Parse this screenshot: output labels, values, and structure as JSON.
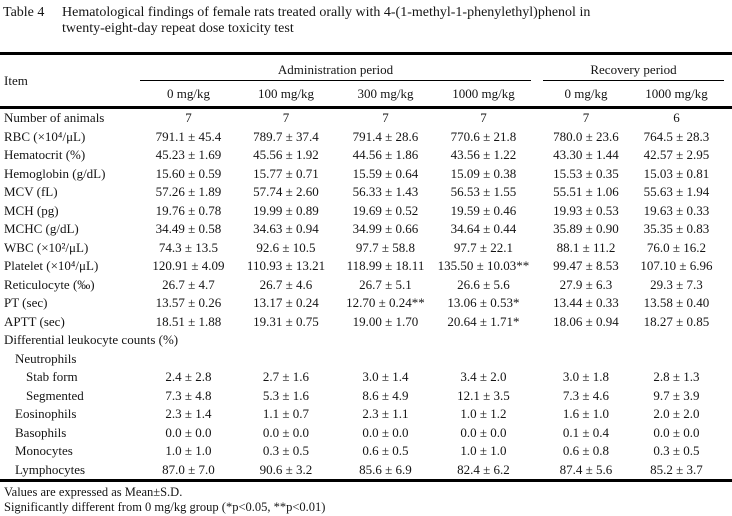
{
  "title": {
    "label": "Table 4",
    "caption_line1": "Hematological findings of female rats treated orally with 4-(1-methyl-1-phenylethyl)phenol in",
    "caption_line2": "twenty-eight-day repeat dose toxicity test"
  },
  "table": {
    "item_header": "Item",
    "groups": [
      {
        "label": "Administration period",
        "columns": [
          "0 mg/kg",
          "100 mg/kg",
          "300 mg/kg",
          "1000 mg/kg"
        ]
      },
      {
        "label": "Recovery period",
        "columns": [
          "0 mg/kg",
          "1000 mg/kg"
        ]
      }
    ],
    "rows": [
      {
        "label": "Number of animals",
        "indent": 0,
        "values": [
          "7",
          "7",
          "7",
          "7",
          "7",
          "6"
        ]
      },
      {
        "label": "RBC (×10⁴/μL)",
        "indent": 0,
        "values": [
          "791.1 ± 45.4",
          "789.7 ± 37.4",
          "791.4 ± 28.6",
          "770.6 ± 21.8",
          "780.0 ± 23.6",
          "764.5 ± 28.3"
        ]
      },
      {
        "label": "Hematocrit (%)",
        "indent": 0,
        "values": [
          "45.23 ± 1.69",
          "45.56 ± 1.92",
          "44.56 ± 1.86",
          "43.56 ± 1.22",
          "43.30 ± 1.44",
          "42.57 ± 2.95"
        ]
      },
      {
        "label": "Hemoglobin (g/dL)",
        "indent": 0,
        "values": [
          "15.60 ± 0.59",
          "15.77 ± 0.71",
          "15.59 ± 0.64",
          "15.09 ± 0.38",
          "15.53 ± 0.35",
          "15.03 ± 0.81"
        ]
      },
      {
        "label": "MCV (fL)",
        "indent": 0,
        "values": [
          "57.26 ± 1.89",
          "57.74 ± 2.60",
          "56.33 ± 1.43",
          "56.53 ± 1.55",
          "55.51 ± 1.06",
          "55.63 ± 1.94"
        ]
      },
      {
        "label": "MCH (pg)",
        "indent": 0,
        "values": [
          "19.76 ± 0.78",
          "19.99 ± 0.89",
          "19.69 ± 0.52",
          "19.59 ± 0.46",
          "19.93 ± 0.53",
          "19.63 ± 0.33"
        ]
      },
      {
        "label": "MCHC (g/dL)",
        "indent": 0,
        "values": [
          "34.49 ± 0.58",
          "34.63 ± 0.94",
          "34.99 ± 0.66",
          "34.64 ± 0.44",
          "35.89 ± 0.90",
          "35.35 ± 0.83"
        ]
      },
      {
        "label": "WBC (×10²/μL)",
        "indent": 0,
        "values": [
          "74.3 ± 13.5",
          "92.6 ± 10.5",
          "97.7 ± 58.8",
          "97.7 ± 22.1",
          "88.1 ± 11.2",
          "76.0 ± 16.2"
        ]
      },
      {
        "label": "Platelet (×10⁴/μL)",
        "indent": 0,
        "values": [
          "120.91 ± 4.09",
          "110.93 ± 13.21",
          "118.99 ± 18.11",
          "135.50 ± 10.03**",
          "99.47 ± 8.53",
          "107.10 ± 6.96"
        ]
      },
      {
        "label": "Reticulocyte (‰)",
        "indent": 0,
        "values": [
          "26.7 ± 4.7",
          "26.7 ± 4.6",
          "26.7 ± 5.1",
          "26.6 ± 5.6",
          "27.9 ± 6.3",
          "29.3 ± 7.3"
        ]
      },
      {
        "label": "PT (sec)",
        "indent": 0,
        "values": [
          "13.57 ± 0.26",
          "13.17 ± 0.24",
          "12.70 ± 0.24**",
          "13.06 ± 0.53*",
          "13.44 ± 0.33",
          "13.58 ± 0.40"
        ]
      },
      {
        "label": "APTT (sec)",
        "indent": 0,
        "values": [
          "18.51 ± 1.88",
          "19.31 ± 0.75",
          "19.00 ± 1.70",
          "20.64 ± 1.71*",
          "18.06 ± 0.94",
          "18.27 ± 0.85"
        ]
      },
      {
        "label": "Differential leukocyte counts (%)",
        "indent": 0,
        "values": [
          "",
          "",
          "",
          "",
          "",
          ""
        ]
      },
      {
        "label": "Neutrophils",
        "indent": 1,
        "values": [
          "",
          "",
          "",
          "",
          "",
          ""
        ]
      },
      {
        "label": "Stab form",
        "indent": 2,
        "values": [
          "2.4 ± 2.8",
          "2.7 ± 1.6",
          "3.0 ± 1.4",
          "3.4 ± 2.0",
          "3.0 ± 1.8",
          "2.8 ± 1.3"
        ]
      },
      {
        "label": "Segmented",
        "indent": 2,
        "values": [
          "7.3 ± 4.8",
          "5.3 ± 1.6",
          "8.6 ± 4.9",
          "12.1 ± 3.5",
          "7.3 ± 4.6",
          "9.7 ± 3.9"
        ]
      },
      {
        "label": "Eosinophils",
        "indent": 1,
        "values": [
          "2.3 ± 1.4",
          "1.1 ± 0.7",
          "2.3 ± 1.1",
          "1.0 ± 1.2",
          "1.6 ± 1.0",
          "2.0 ± 2.0"
        ]
      },
      {
        "label": "Basophils",
        "indent": 1,
        "values": [
          "0.0 ± 0.0",
          "0.0 ± 0.0",
          "0.0 ± 0.0",
          "0.0 ± 0.0",
          "0.1 ± 0.4",
          "0.0 ± 0.0"
        ]
      },
      {
        "label": "Monocytes",
        "indent": 1,
        "values": [
          "1.0 ± 1.0",
          "0.3 ± 0.5",
          "0.6 ± 0.5",
          "1.0 ± 1.0",
          "0.6 ± 0.8",
          "0.3 ± 0.5"
        ]
      },
      {
        "label": "Lymphocytes",
        "indent": 1,
        "values": [
          "87.0 ± 7.0",
          "90.6 ± 3.2",
          "85.6 ± 6.9",
          "82.4 ± 6.2",
          "87.4 ± 5.6",
          "85.2 ± 3.7"
        ]
      }
    ]
  },
  "footnotes": {
    "line1": "Values are expressed as Mean±S.D.",
    "line2": "Significantly different from 0 mg/kg group (*p<0.05, **p<0.01)"
  }
}
